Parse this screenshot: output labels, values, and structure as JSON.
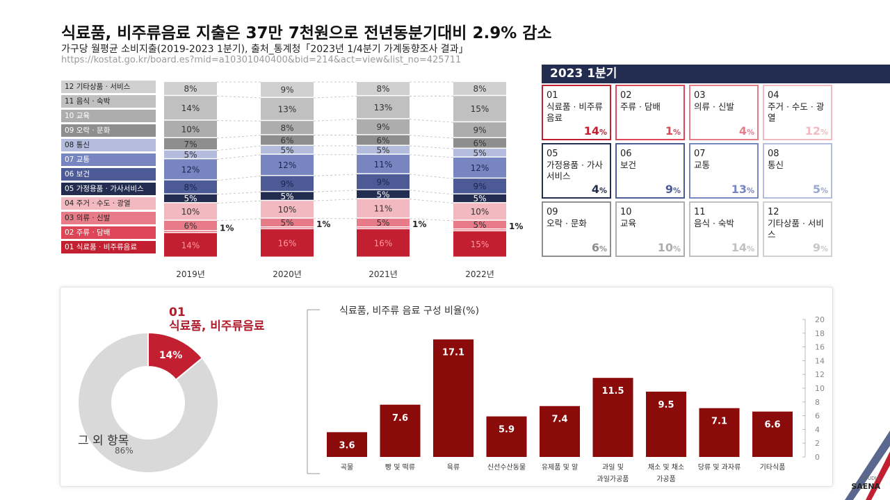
{
  "header": {
    "title": "식료품, 비주류음료 지출은 37만 7천원으로 전년동분기대비 2.9% 감소",
    "subtitle": "가구당 월평균 소비지출(2019-2023 1분기), 출처_통계청「2023년 1/4분기 가계동향조사 결과」",
    "url": "https://kostat.go.kr/board.es?mid=a10301040400&bid=214&act=view&list_no=425711"
  },
  "stacked_legend": [
    {
      "label": "12 기타상품 · 서비스",
      "color": "#d0d0d0",
      "text_color": "#222222"
    },
    {
      "label": "11 음식 · 숙박",
      "color": "#c0c0c0",
      "text_color": "#222222"
    },
    {
      "label": "10 교육",
      "color": "#adadad",
      "text_color": "#ffffff"
    },
    {
      "label": "09 오락 · 문화",
      "color": "#8e8e8e",
      "text_color": "#ffffff"
    },
    {
      "label": "08 통신",
      "color": "#b3bcdd",
      "text_color": "#222222"
    },
    {
      "label": "07 교통",
      "color": "#7786c0",
      "text_color": "#ffffff"
    },
    {
      "label": "06 보건",
      "color": "#4c5a96",
      "text_color": "#ffffff"
    },
    {
      "label": "05 가정용품 · 가사서비스",
      "color": "#232d50",
      "text_color": "#ffffff"
    },
    {
      "label": "04 주거 · 수도 · 광열",
      "color": "#f3b9c0",
      "text_color": "#222222"
    },
    {
      "label": "03 의류 · 신발",
      "color": "#e77c88",
      "text_color": "#222222"
    },
    {
      "label": "02 주류 · 담배",
      "color": "#dc4656",
      "text_color": "#ffffff"
    },
    {
      "label": "01 식료품 · 비주류음료",
      "color": "#c21f31",
      "text_color": "#ffffff"
    }
  ],
  "quarter_panel": {
    "header": "2023 1분기",
    "tiles": [
      {
        "num": "01",
        "name": "식료품 · 비주류음료",
        "pct": "14",
        "border": "#c21f31",
        "pct_color": "#c21f31"
      },
      {
        "num": "02",
        "name": "주류 · 담배",
        "pct": "1",
        "border": "#dc4656",
        "pct_color": "#dc4656"
      },
      {
        "num": "03",
        "name": "의류 · 신발",
        "pct": "4",
        "border": "#e77c88",
        "pct_color": "#e77c88"
      },
      {
        "num": "04",
        "name": "주거 · 수도 · 광열",
        "pct": "12",
        "border": "#f3b9c0",
        "pct_color": "#f3b9c0"
      },
      {
        "num": "05",
        "name": "가정용품 · 가사서비스",
        "pct": "4",
        "border": "#232d50",
        "pct_color": "#232d50"
      },
      {
        "num": "06",
        "name": "보건",
        "pct": "9",
        "border": "#4c5a96",
        "pct_color": "#4c5a96"
      },
      {
        "num": "07",
        "name": "교통",
        "pct": "13",
        "border": "#7786c0",
        "pct_color": "#7786c0"
      },
      {
        "num": "08",
        "name": "통신",
        "pct": "5",
        "border": "#b3bcdd",
        "pct_color": "#9aa6d2"
      },
      {
        "num": "09",
        "name": "오락 · 문화",
        "pct": "6",
        "border": "#8e8e8e",
        "pct_color": "#8e8e8e"
      },
      {
        "num": "10",
        "name": "교육",
        "pct": "10",
        "border": "#adadad",
        "pct_color": "#adadad"
      },
      {
        "num": "11",
        "name": "음식 · 숙박",
        "pct": "14",
        "border": "#c0c0c0",
        "pct_color": "#c0c0c0"
      },
      {
        "num": "12",
        "name": "기타상품 · 서비스",
        "pct": "9",
        "border": "#d0d0d0",
        "pct_color": "#c8c8c8"
      }
    ]
  },
  "donut": {
    "title_num": "01",
    "title_name": "식료품, 비주류음료",
    "others_label": "그 외 항목",
    "others_pct": "86%",
    "highlight_color": "#c21f31",
    "other_color": "#d9d9d9"
  },
  "bar_chart_title": "식료품, 비주류 음료 구성 비율(%)",
  "chart_data": [
    {
      "type": "bar",
      "title": "",
      "stacked": true,
      "categories": [
        "2019년",
        "2020년",
        "2021년",
        "2022년"
      ],
      "series": [
        {
          "name": "01 식료품 · 비주류음료",
          "values": [
            14,
            16,
            16,
            15
          ],
          "labels": [
            "14%",
            "16%",
            "16%",
            "15%"
          ]
        },
        {
          "name": "02 주류 · 담배",
          "values": [
            1,
            1,
            1,
            1
          ],
          "labels": [
            "1%",
            "1%",
            "1%",
            "1%"
          ]
        },
        {
          "name": "03 의류 · 신발",
          "values": [
            6,
            5,
            5,
            5
          ],
          "labels": [
            "6%",
            "5%",
            "5%",
            "5%"
          ]
        },
        {
          "name": "04 주거 · 수도 · 광열",
          "values": [
            10,
            10,
            11,
            10
          ],
          "labels": [
            "10%",
            "10%",
            "11%",
            "10%"
          ]
        },
        {
          "name": "05 가정용품 · 가사서비스",
          "values": [
            5,
            5,
            5,
            5
          ],
          "labels": [
            "5%",
            "5%",
            "5%",
            "5%"
          ]
        },
        {
          "name": "06 보건",
          "values": [
            8,
            9,
            9,
            9
          ],
          "labels": [
            "8%",
            "9%",
            "9%",
            "9%"
          ]
        },
        {
          "name": "07 교통",
          "values": [
            12,
            12,
            11,
            12
          ],
          "labels": [
            "12%",
            "12%",
            "11%",
            "12%"
          ]
        },
        {
          "name": "08 통신",
          "values": [
            5,
            5,
            5,
            5
          ],
          "labels": [
            "5%",
            "5%",
            "5%",
            "5%"
          ]
        },
        {
          "name": "09 오락 · 문화",
          "values": [
            7,
            6,
            6,
            6
          ],
          "labels": [
            "7%",
            "6%",
            "6%",
            "6%"
          ]
        },
        {
          "name": "10 교육",
          "values": [
            10,
            8,
            9,
            9
          ],
          "labels": [
            "10%",
            "8%",
            "9%",
            "9%"
          ]
        },
        {
          "name": "11 음식 · 숙박",
          "values": [
            14,
            13,
            13,
            15
          ],
          "labels": [
            "14%",
            "13%",
            "13%",
            "15%"
          ]
        },
        {
          "name": "12 기타상품 · 서비스",
          "values": [
            8,
            9,
            8,
            8
          ],
          "labels": [
            "8%",
            "9%",
            "8%",
            "8%"
          ]
        }
      ]
    },
    {
      "type": "pie",
      "title": "01 식료품, 비주류음료",
      "slices": [
        {
          "name": "식료품, 비주류음료",
          "value": 14,
          "label": "14%"
        },
        {
          "name": "그 외 항목",
          "value": 86,
          "label": "86%"
        }
      ]
    },
    {
      "type": "bar",
      "title": "식료품, 비주류 음료 구성 비율(%)",
      "categories": [
        "곡물",
        "빵 및 떡류",
        "육류",
        "신선수산동물",
        "유제품 및 알",
        "과일 및 과일가공품",
        "채소 및 채소가공품",
        "당류 및 과자류",
        "기타식품"
      ],
      "category_lines": [
        [
          "곡물"
        ],
        [
          "빵 및 떡류"
        ],
        [
          "육류"
        ],
        [
          "신선수산동물"
        ],
        [
          "유제품 및 알"
        ],
        [
          "과일 및",
          "과일가공품"
        ],
        [
          "채소 및 채소",
          "가공품"
        ],
        [
          "당류 및 과자류"
        ],
        [
          "기타식품"
        ]
      ],
      "values": [
        3.6,
        7.6,
        17.1,
        5.9,
        7.4,
        11.5,
        9.5,
        7.1,
        6.6
      ],
      "ylim": [
        0,
        20
      ],
      "yticks": [
        0,
        2,
        4,
        6,
        8,
        10,
        12,
        14,
        16,
        18,
        20
      ],
      "color": "#8b0a0a"
    }
  ],
  "footer": {
    "studio_top": "STUDIO",
    "studio_name": "SAENA"
  }
}
